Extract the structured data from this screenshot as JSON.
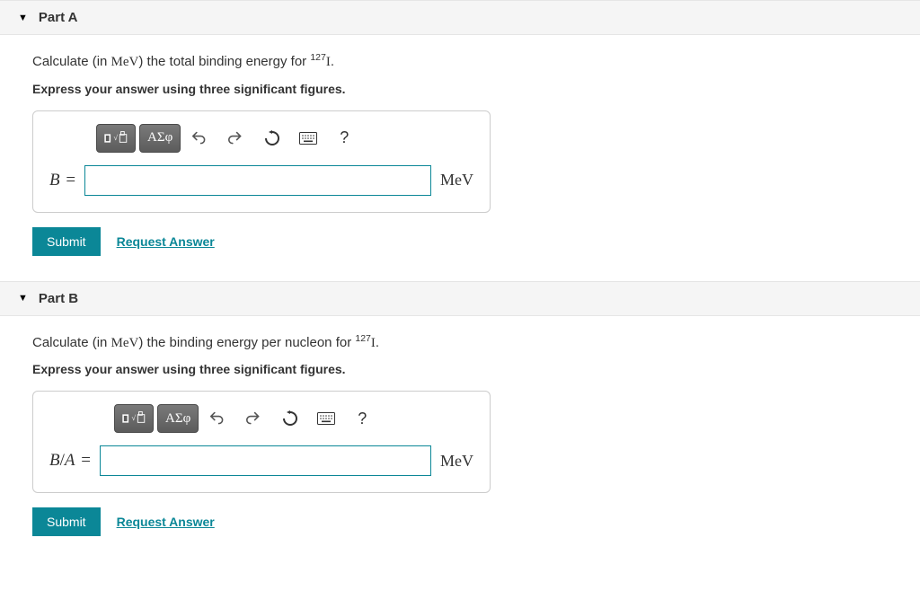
{
  "parts": [
    {
      "key": "partA",
      "header": "Part A",
      "question_pre": "Calculate (in ",
      "question_unit_inline": "MeV",
      "question_mid": ") the total binding energy for ",
      "isotope_sup": "127",
      "isotope_sym": "I",
      "question_post": ".",
      "instruction": "Express your answer using three significant figures.",
      "var_label_html": "B",
      "var_eq": " =",
      "unit": "MeV",
      "submit": "Submit",
      "request": "Request Answer",
      "toolbar": {
        "greek": "ΑΣφ",
        "help": "?"
      }
    },
    {
      "key": "partB",
      "header": "Part B",
      "question_pre": "Calculate (in ",
      "question_unit_inline": "MeV",
      "question_mid": ") the binding energy per nucleon for ",
      "isotope_sup": "127",
      "isotope_sym": "I",
      "question_post": ".",
      "instruction": "Express your answer using three significant figures.",
      "var_label_html": "B/A",
      "var_eq": " =",
      "unit": "MeV",
      "submit": "Submit",
      "request": "Request Answer",
      "toolbar": {
        "greek": "ΑΣφ",
        "help": "?"
      }
    }
  ],
  "colors": {
    "accent": "#0b8797",
    "header_bg": "#f5f5f5",
    "border": "#cccccc"
  }
}
